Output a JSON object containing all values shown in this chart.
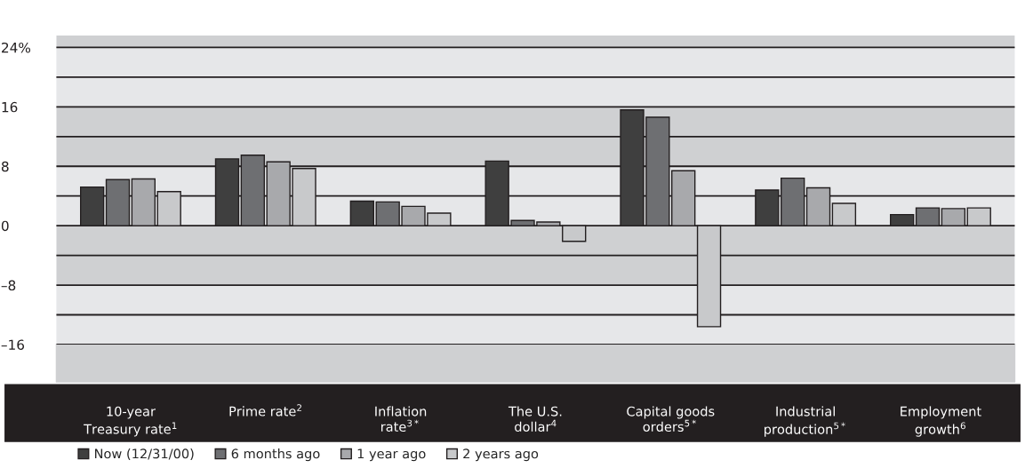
{
  "chart_data": {
    "type": "bar",
    "categories": [
      "10-year\nTreasury rate$^{1}$",
      "Prime rate$^{2}$",
      "Inflation\nrate$^{3*}$",
      "The U.S.\ndollar$^{4}$",
      "Capital goods\norders$^{5*}$",
      "Industrial\nproduction$^{5*}$",
      "Employment\ngrowth$^{6}$"
    ],
    "series": [
      {
        "name": "Now (12/31/00)",
        "color": "#3f3f3f",
        "values": [
          5.2,
          9.0,
          3.3,
          8.7,
          15.6,
          4.8,
          1.5
        ]
      },
      {
        "name": "6 months ago",
        "color": "#6e6f72",
        "values": [
          6.2,
          9.5,
          3.2,
          0.7,
          14.6,
          6.4,
          2.4
        ]
      },
      {
        "name": "1 year ago",
        "color": "#a8a9ac",
        "values": [
          6.3,
          8.6,
          2.6,
          0.5,
          7.4,
          5.1,
          2.3
        ]
      },
      {
        "name": "2 years ago",
        "color": "#c8c9cb",
        "values": [
          4.6,
          7.7,
          1.7,
          -2.1,
          -13.6,
          3.0,
          2.4
        ]
      }
    ],
    "ylim": [
      -16,
      25.6
    ],
    "yticks": [
      {
        "value": -16,
        "label": "–16"
      },
      {
        "value": -12,
        "label": null
      },
      {
        "value": -8,
        "label": "–8"
      },
      {
        "value": -4,
        "label": null
      },
      0,
      {
        "value": 4,
        "label": null
      },
      8,
      {
        "value": 12,
        "label": null
      },
      16,
      {
        "value": 20,
        "label": null
      },
      {
        "value": 24,
        "label": "24%"
      }
    ],
    "grid": "y",
    "legend": "bottom left"
  }
}
